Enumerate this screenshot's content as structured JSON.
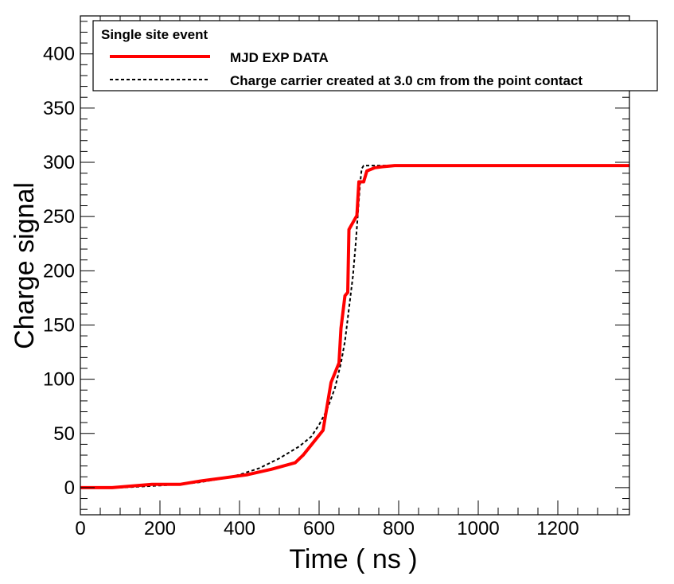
{
  "chart_data": {
    "type": "line",
    "title": "",
    "xlabel": "Time ( ns )",
    "ylabel": "Charge signal",
    "xlim": [
      0,
      1380
    ],
    "ylim": [
      -25,
      435
    ],
    "x_ticks": [
      0,
      200,
      400,
      600,
      800,
      1000,
      1200
    ],
    "y_ticks": [
      0,
      50,
      100,
      150,
      200,
      250,
      300,
      350,
      400
    ],
    "legend_header": "Single site event",
    "legend_position": "top-right",
    "grid": false,
    "series": [
      {
        "name": "MJD EXP DATA",
        "color": "#ff0000",
        "style": "solid",
        "points": [
          [
            0,
            0
          ],
          [
            80,
            0
          ],
          [
            180,
            3
          ],
          [
            250,
            3
          ],
          [
            300,
            6
          ],
          [
            360,
            9
          ],
          [
            420,
            12
          ],
          [
            480,
            17
          ],
          [
            540,
            23
          ],
          [
            560,
            30
          ],
          [
            610,
            53
          ],
          [
            630,
            97
          ],
          [
            650,
            115
          ],
          [
            655,
            147
          ],
          [
            665,
            177
          ],
          [
            672,
            180
          ],
          [
            675,
            238
          ],
          [
            695,
            251
          ],
          [
            700,
            282
          ],
          [
            712,
            282
          ],
          [
            720,
            292
          ],
          [
            740,
            295
          ],
          [
            760,
            296
          ],
          [
            790,
            297
          ],
          [
            1000,
            297
          ],
          [
            1380,
            297
          ]
        ]
      },
      {
        "name": "Charge carrier created at 3.0 cm from the point contact",
        "color": "#000000",
        "style": "dashed",
        "points": [
          [
            0,
            0
          ],
          [
            100,
            0
          ],
          [
            200,
            2
          ],
          [
            250,
            3
          ],
          [
            300,
            5
          ],
          [
            350,
            8
          ],
          [
            400,
            12
          ],
          [
            450,
            18
          ],
          [
            500,
            27
          ],
          [
            550,
            38
          ],
          [
            580,
            47
          ],
          [
            600,
            58
          ],
          [
            620,
            72
          ],
          [
            640,
            92
          ],
          [
            655,
            115
          ],
          [
            665,
            135
          ],
          [
            675,
            165
          ],
          [
            685,
            195
          ],
          [
            692,
            225
          ],
          [
            698,
            255
          ],
          [
            703,
            280
          ],
          [
            707,
            294
          ],
          [
            712,
            297
          ],
          [
            730,
            297
          ],
          [
            800,
            297
          ],
          [
            1000,
            297
          ]
        ]
      }
    ]
  }
}
